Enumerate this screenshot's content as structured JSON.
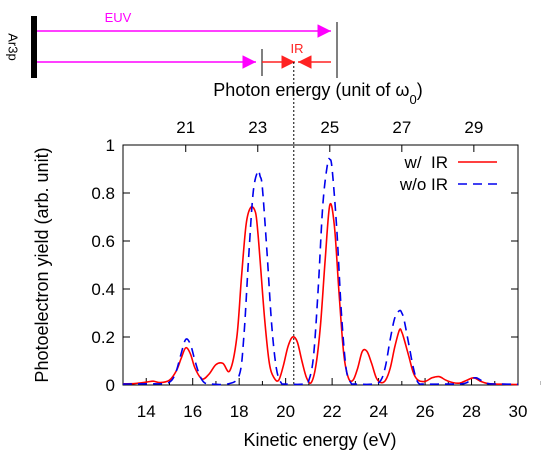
{
  "diagram": {
    "level_label": "Ar3p",
    "euv_label": "EUV",
    "ir_label": "IR",
    "colors": {
      "euv": "#ff00ff",
      "ir": "#ff2222",
      "bar": "#000000"
    }
  },
  "chart_data": {
    "type": "line",
    "xlabel": "Kinetic energy (eV)",
    "ylabel": "Photoelectron yield (arb. unit)",
    "x2label": "Photon energy (unit of ω",
    "x2label_sub": "0",
    "x2label_tail": ")",
    "xlim": [
      13,
      30
    ],
    "ylim": [
      0,
      1
    ],
    "xticks": [
      14,
      16,
      18,
      20,
      22,
      24,
      26,
      28,
      30
    ],
    "yticks": [
      0,
      0.2,
      0.4,
      0.6,
      0.8,
      1
    ],
    "ytick_labels": [
      "0",
      "0.2",
      "0.4",
      "0.6",
      "0.8",
      "1"
    ],
    "x2ticks": [
      {
        "label": "21",
        "x": 15.7
      },
      {
        "label": "23",
        "x": 18.8
      },
      {
        "label": "25",
        "x": 21.9
      },
      {
        "label": "27",
        "x": 25.0
      },
      {
        "label": "29",
        "x": 28.1
      }
    ],
    "threshold_x": 20.35,
    "legend_position": "top-right",
    "series": [
      {
        "name": "w/  IR",
        "color": "#ff0000",
        "dash": "solid",
        "x": [
          13,
          13.5,
          14,
          14.3,
          14.6,
          15,
          15.3,
          15.5,
          15.7,
          15.9,
          16.1,
          16.4,
          16.7,
          17,
          17.3,
          17.6,
          17.9,
          18.1,
          18.3,
          18.5,
          18.7,
          18.8,
          18.9,
          19.1,
          19.3,
          19.5,
          19.7,
          19.9,
          20.1,
          20.3,
          20.5,
          20.7,
          20.9,
          21.1,
          21.3,
          21.5,
          21.7,
          21.9,
          22.1,
          22.3,
          22.5,
          22.7,
          22.9,
          23.1,
          23.3,
          23.5,
          23.7,
          23.9,
          24.1,
          24.3,
          24.5,
          24.7,
          24.9,
          25.0,
          25.1,
          25.3,
          25.5,
          25.7,
          26.0,
          26.3,
          26.6,
          26.9,
          27.2,
          27.5,
          27.8,
          28.1,
          28.4,
          28.7,
          29.0,
          29.5,
          30
        ],
        "y": [
          0.005,
          0.006,
          0.012,
          0.016,
          0.01,
          0.02,
          0.06,
          0.11,
          0.155,
          0.13,
          0.07,
          0.025,
          0.045,
          0.085,
          0.09,
          0.06,
          0.2,
          0.45,
          0.67,
          0.74,
          0.72,
          0.64,
          0.52,
          0.27,
          0.09,
          0.03,
          0.02,
          0.08,
          0.16,
          0.2,
          0.18,
          0.1,
          0.03,
          0.01,
          0.08,
          0.25,
          0.52,
          0.75,
          0.66,
          0.38,
          0.13,
          0.03,
          0.02,
          0.07,
          0.14,
          0.14,
          0.09,
          0.03,
          0.01,
          0.02,
          0.07,
          0.16,
          0.23,
          0.22,
          0.19,
          0.12,
          0.05,
          0.02,
          0.015,
          0.03,
          0.035,
          0.02,
          0.01,
          0.008,
          0.02,
          0.03,
          0.015,
          0.006,
          0.004,
          0.003,
          0.002
        ]
      },
      {
        "name": "w/o IR",
        "color": "#0000ee",
        "dash": "dashed",
        "x": [
          13,
          14,
          14.8,
          15.1,
          15.3,
          15.5,
          15.7,
          15.9,
          16.1,
          16.3,
          16.5,
          16.8,
          17.5,
          18.0,
          18.2,
          18.4,
          18.6,
          18.8,
          18.9,
          19.0,
          19.2,
          19.4,
          19.6,
          19.8,
          20.0,
          20.8,
          21.0,
          21.2,
          21.4,
          21.6,
          21.8,
          21.9,
          22.0,
          22.2,
          22.4,
          22.6,
          22.8,
          23.0,
          23.8,
          24.1,
          24.3,
          24.5,
          24.7,
          24.9,
          25.0,
          25.1,
          25.3,
          25.5,
          25.7,
          26.0,
          27.0,
          27.5,
          27.8,
          28.0,
          28.2,
          28.4,
          28.7,
          29.2,
          30
        ],
        "y": [
          0.004,
          0.005,
          0.006,
          0.02,
          0.06,
          0.13,
          0.19,
          0.17,
          0.1,
          0.04,
          0.01,
          0.004,
          0.004,
          0.04,
          0.2,
          0.52,
          0.8,
          0.89,
          0.87,
          0.82,
          0.55,
          0.25,
          0.07,
          0.01,
          0.004,
          0.004,
          0.02,
          0.12,
          0.4,
          0.75,
          0.92,
          0.94,
          0.9,
          0.65,
          0.3,
          0.07,
          0.01,
          0.004,
          0.004,
          0.02,
          0.08,
          0.19,
          0.28,
          0.31,
          0.3,
          0.27,
          0.17,
          0.07,
          0.01,
          0.004,
          0.004,
          0.004,
          0.01,
          0.025,
          0.03,
          0.02,
          0.006,
          0.004,
          0.003
        ]
      }
    ]
  }
}
